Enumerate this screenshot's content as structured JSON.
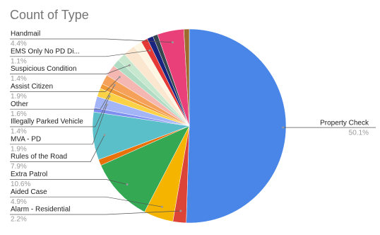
{
  "chart_data": {
    "type": "pie",
    "title": "Count of Type",
    "categories": [
      "Property Check",
      "Alarm - Residential",
      "Aided Case",
      "Extra Patrol",
      null,
      "Rules of the Road",
      null,
      "MVA - PD",
      "Illegally Parked Vehicle",
      null,
      "Other",
      "Assist Citizen",
      null,
      "Suspicious Condition",
      null,
      null,
      "EMS Only No PD Di...",
      null,
      null,
      "Handmail",
      null
    ],
    "values": [
      50.1,
      2.2,
      4.9,
      10.6,
      1.0,
      7.9,
      0.7,
      1.9,
      1.4,
      0.8,
      1.6,
      1.9,
      1.2,
      1.4,
      2.0,
      1.4,
      1.1,
      1.0,
      0.8,
      4.4,
      0.9
    ],
    "value_labels": [
      "50.1%",
      "2.2%",
      "4.9%",
      "10.6%",
      null,
      "7.9%",
      null,
      "1.9%",
      "1.4%",
      null,
      "1.6%",
      "1.9%",
      null,
      "1.4%",
      null,
      null,
      "1.1%",
      null,
      null,
      "4.4%",
      null
    ],
    "colors": [
      "#4a86e8",
      "#db4437",
      "#f4b400",
      "#34a853",
      "#e8710a",
      "#5bbfc9",
      "#7e8ff0",
      "#a3b4f7",
      "#fbd246",
      "#f09a37",
      "#f6a15a",
      "#f4b7b2",
      "#b0dcc4",
      "#c7e8cf",
      "#fbe6d0",
      "#fdf6e3",
      "#e53935",
      "#1a237e",
      "#37474f",
      "#e9407a",
      "#9e6b2f"
    ]
  }
}
